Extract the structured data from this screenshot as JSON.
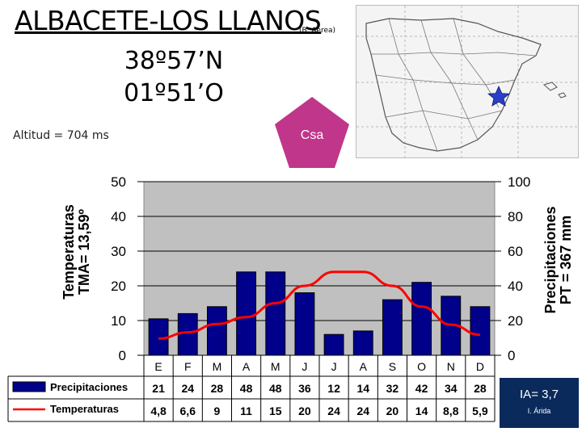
{
  "header": {
    "station": "ALBACETE-LOS LLANOS",
    "station_note": "(B. Aérea)",
    "latitude": "38º57’N",
    "longitude": "01º51’O",
    "altitude": "Altitud = 704 ms",
    "climate_code": "Csa"
  },
  "index": {
    "aridity": "IA= 3,7",
    "aridity_class": "I. Árida"
  },
  "chart_data": {
    "type": "bar",
    "categories": [
      "E",
      "F",
      "M",
      "A",
      "M",
      "J",
      "J",
      "A",
      "S",
      "O",
      "N",
      "D"
    ],
    "series": [
      {
        "name": "Precipitaciones",
        "type": "bar",
        "axis": "right",
        "values": [
          21,
          24,
          28,
          48,
          48,
          36,
          12,
          14,
          32,
          42,
          34,
          28
        ],
        "labels": [
          "21",
          "24",
          "28",
          "48",
          "48",
          "36",
          "12",
          "14",
          "32",
          "42",
          "34",
          "28"
        ]
      },
      {
        "name": "Temperaturas",
        "type": "line",
        "axis": "left",
        "values": [
          4.8,
          6.6,
          9,
          11,
          15,
          20,
          24,
          24,
          20,
          14,
          8.8,
          5.9
        ],
        "labels": [
          "4,8",
          "6,6",
          "9",
          "11",
          "15",
          "20",
          "24",
          "24",
          "20",
          "14",
          "8,8",
          "5,9"
        ]
      }
    ],
    "y_left": {
      "label": "Temperaturas\nTMA= 13,59º",
      "ylim": [
        0,
        50
      ],
      "ticks": [
        "0",
        "10",
        "20",
        "30",
        "40",
        "50"
      ]
    },
    "y_right": {
      "label": "Precipitaciones\nPT = 367 mm",
      "ylim": [
        0,
        100
      ],
      "ticks": [
        "0",
        "20",
        "40",
        "60",
        "80",
        "100"
      ]
    },
    "grid": true,
    "legend": "bottom-left, as data table",
    "colors": {
      "bar_fill": "#00008b",
      "bar_stroke": "#000000",
      "line": "#ff0000",
      "plot_bg": "#c0c0c0",
      "pentagon": "#c0368a",
      "star": "#2a3fc8"
    }
  }
}
